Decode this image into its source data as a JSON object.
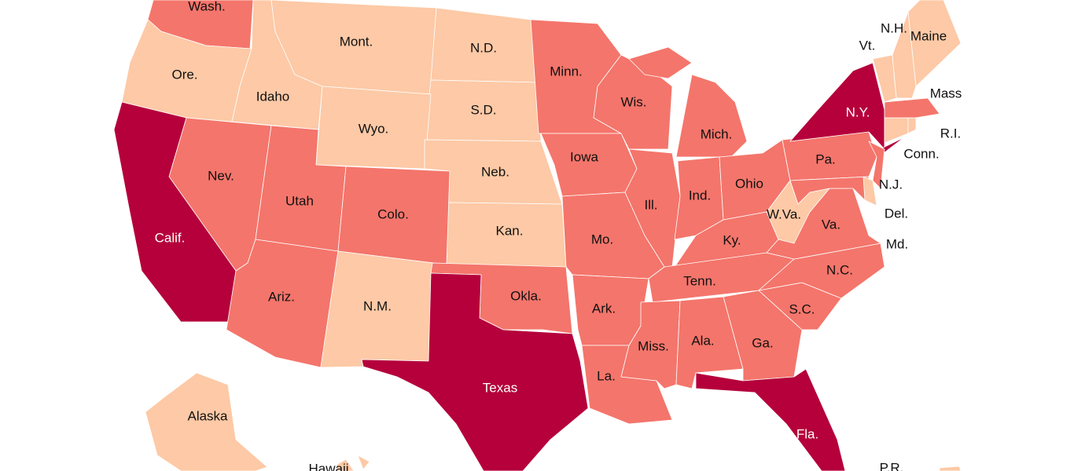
{
  "map": {
    "colors": {
      "low": "#fdc9a6",
      "mid": "#f4756b",
      "high": "#b5003b"
    },
    "states": [
      {
        "label": "Wash.",
        "tier": "mid"
      },
      {
        "label": "Ore.",
        "tier": "low"
      },
      {
        "label": "Idaho",
        "tier": "low"
      },
      {
        "label": "Mont.",
        "tier": "low"
      },
      {
        "label": "N.D.",
        "tier": "low"
      },
      {
        "label": "S.D.",
        "tier": "low"
      },
      {
        "label": "Wyo.",
        "tier": "low"
      },
      {
        "label": "Neb.",
        "tier": "low"
      },
      {
        "label": "Kan.",
        "tier": "low"
      },
      {
        "label": "Nev.",
        "tier": "mid"
      },
      {
        "label": "Calif.",
        "tier": "high"
      },
      {
        "label": "Utah",
        "tier": "mid"
      },
      {
        "label": "Colo.",
        "tier": "mid"
      },
      {
        "label": "Ariz.",
        "tier": "mid"
      },
      {
        "label": "N.M.",
        "tier": "low"
      },
      {
        "label": "Okla.",
        "tier": "mid"
      },
      {
        "label": "Texas",
        "tier": "high"
      },
      {
        "label": "Minn.",
        "tier": "mid"
      },
      {
        "label": "Iowa",
        "tier": "mid"
      },
      {
        "label": "Mo.",
        "tier": "mid"
      },
      {
        "label": "Ark.",
        "tier": "mid"
      },
      {
        "label": "La.",
        "tier": "mid"
      },
      {
        "label": "Wis.",
        "tier": "mid"
      },
      {
        "label": "Ill.",
        "tier": "mid"
      },
      {
        "label": "Mich.",
        "tier": "mid"
      },
      {
        "label": "Ind.",
        "tier": "mid"
      },
      {
        "label": "Ohio",
        "tier": "mid"
      },
      {
        "label": "Ky.",
        "tier": "mid"
      },
      {
        "label": "Tenn.",
        "tier": "mid"
      },
      {
        "label": "Miss.",
        "tier": "mid"
      },
      {
        "label": "Ala.",
        "tier": "mid"
      },
      {
        "label": "Ga.",
        "tier": "mid"
      },
      {
        "label": "Fla.",
        "tier": "high"
      },
      {
        "label": "S.C.",
        "tier": "mid"
      },
      {
        "label": "N.C.",
        "tier": "mid"
      },
      {
        "label": "Va.",
        "tier": "mid"
      },
      {
        "label": "W.Va.",
        "tier": "low"
      },
      {
        "label": "Pa.",
        "tier": "mid"
      },
      {
        "label": "N.Y.",
        "tier": "high"
      },
      {
        "label": "Md.",
        "tier": "mid"
      },
      {
        "label": "Del.",
        "tier": "low"
      },
      {
        "label": "N.J.",
        "tier": "mid"
      },
      {
        "label": "Conn.",
        "tier": "low"
      },
      {
        "label": "R.I.",
        "tier": "low"
      },
      {
        "label": "Mass",
        "tier": "mid"
      },
      {
        "label": "Vt.",
        "tier": "low"
      },
      {
        "label": "N.H.",
        "tier": "low"
      },
      {
        "label": "Maine",
        "tier": "low"
      },
      {
        "label": "Alaska",
        "tier": "low"
      },
      {
        "label": "Hawaii",
        "tier": "low"
      },
      {
        "label": "P.R.",
        "tier": "low"
      }
    ]
  }
}
